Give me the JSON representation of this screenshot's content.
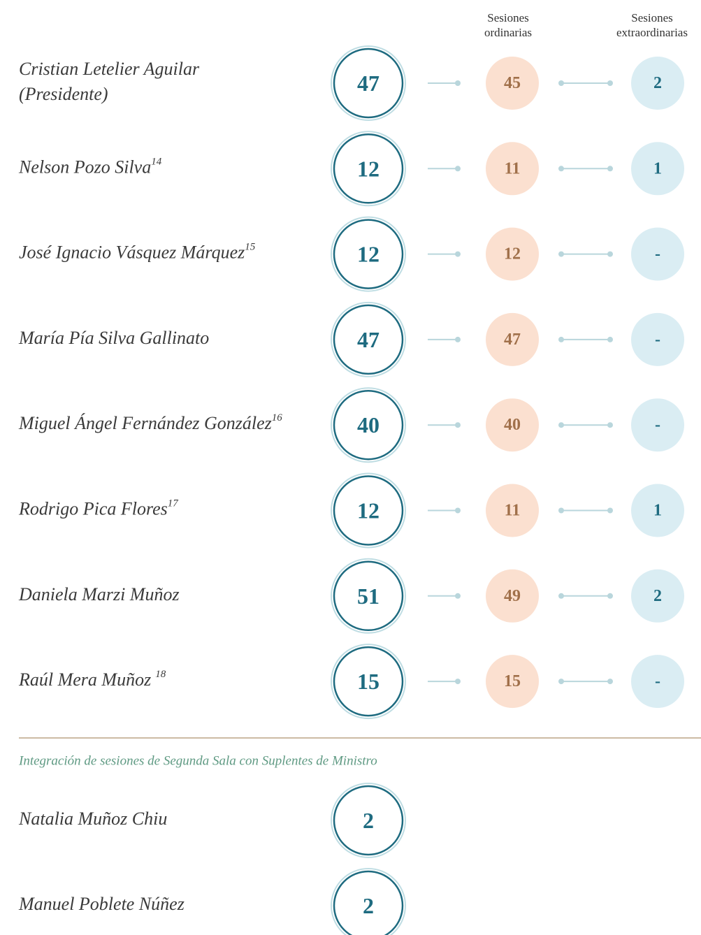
{
  "headers": {
    "ordinary": [
      "Sesiones",
      "ordinarias"
    ],
    "extraordinary": [
      "Sesiones",
      "extraordinarias"
    ]
  },
  "rows": [
    {
      "name": "Cristian Letelier Aguilar",
      "role": "(Presidente)",
      "total": "47",
      "ordinary": "45",
      "extraordinary": "2"
    },
    {
      "name": "Nelson Pozo Silva",
      "note": "14",
      "total": "12",
      "ordinary": "11",
      "extraordinary": "1"
    },
    {
      "name": "José Ignacio Vásquez Márquez",
      "note": "15",
      "total": "12",
      "ordinary": "12",
      "extraordinary": "-"
    },
    {
      "name": "María Pía Silva Gallinato",
      "total": "47",
      "ordinary": "47",
      "extraordinary": "-"
    },
    {
      "name": "Miguel Ángel Fernández González",
      "note": "16",
      "total": "40",
      "ordinary": "40",
      "extraordinary": "-"
    },
    {
      "name": "Rodrigo Pica Flores",
      "note": "17",
      "total": "12",
      "ordinary": "11",
      "extraordinary": "1"
    },
    {
      "name": "Daniela Marzi Muñoz",
      "total": "51",
      "ordinary": "49",
      "extraordinary": "2"
    },
    {
      "name": "Raúl Mera Muñoz",
      "note": "18",
      "total": "15",
      "ordinary": "15",
      "extraordinary": "-"
    }
  ],
  "substitutes": {
    "title": "Integración de sesiones de Segunda Sala con Suplentes de Ministro",
    "rows": [
      {
        "name": "Natalia Muñoz Chiu",
        "total": "2"
      },
      {
        "name": "Manuel Poblete Núñez",
        "total": "2"
      }
    ]
  }
}
